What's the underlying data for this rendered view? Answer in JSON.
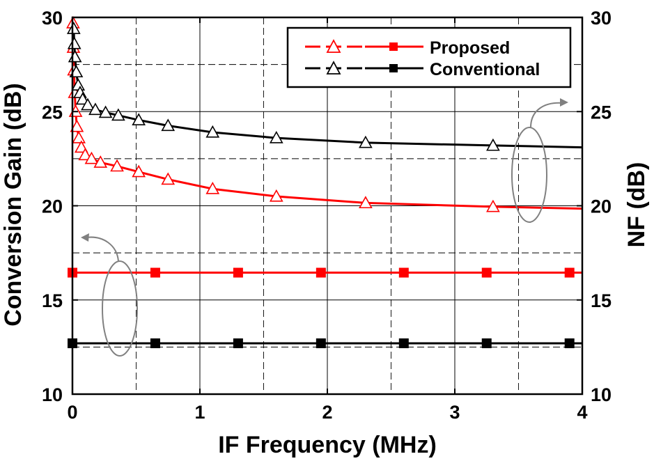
{
  "chart_data": {
    "type": "line",
    "xlabel": "IF Frequency (MHz)",
    "ylabel_left": "Conversion Gain (dB)",
    "ylabel_right": "NF (dB)",
    "xlim": [
      0,
      4
    ],
    "ylim_left": [
      10,
      30
    ],
    "ylim_right": [
      10,
      30
    ],
    "xticks": [
      "0",
      "1",
      "2",
      "3",
      "4"
    ],
    "yticks_left": [
      "10",
      "15",
      "20",
      "25",
      "30"
    ],
    "yticks_right": [
      "10",
      "15",
      "20",
      "25",
      "30"
    ],
    "grid": true,
    "legend": {
      "placement": "top-right",
      "entries": [
        "Proposed",
        "Conventional"
      ]
    },
    "colors": {
      "proposed": "#ff0000",
      "conventional": "#000000",
      "annotation": "#808080"
    },
    "series": [
      {
        "name": "Proposed",
        "kind": "conversion-gain",
        "axis": "left",
        "marker": "filled-square",
        "color": "#ff0000",
        "x": [
          0,
          0.65,
          1.3,
          1.95,
          2.6,
          3.25,
          3.9
        ],
        "y": [
          16.45,
          16.45,
          16.45,
          16.45,
          16.45,
          16.45,
          16.45
        ]
      },
      {
        "name": "Conventional",
        "kind": "conversion-gain",
        "axis": "left",
        "marker": "filled-square",
        "color": "#000000",
        "x": [
          0,
          0.65,
          1.3,
          1.95,
          2.6,
          3.25,
          3.9
        ],
        "y": [
          12.7,
          12.7,
          12.7,
          12.7,
          12.7,
          12.7,
          12.7
        ]
      },
      {
        "name": "Proposed",
        "kind": "nf",
        "axis": "right",
        "marker": "open-triangle",
        "color": "#ff0000",
        "x": [
          0.005,
          0.008,
          0.012,
          0.018,
          0.025,
          0.035,
          0.05,
          0.07,
          0.1,
          0.15,
          0.22,
          0.35,
          0.52,
          0.75,
          1.1,
          1.6,
          2.3,
          3.3,
          4.0
        ],
        "y": [
          29.7,
          28.4,
          27.2,
          26.0,
          25.0,
          24.2,
          23.6,
          23.1,
          22.7,
          22.5,
          22.3,
          22.1,
          21.8,
          21.4,
          20.9,
          20.5,
          20.15,
          19.95,
          19.85
        ]
      },
      {
        "name": "Conventional",
        "kind": "nf",
        "axis": "right",
        "marker": "open-triangle",
        "color": "#000000",
        "x": [
          0.01,
          0.015,
          0.02,
          0.03,
          0.045,
          0.06,
          0.08,
          0.12,
          0.18,
          0.26,
          0.36,
          0.52,
          0.75,
          1.1,
          1.6,
          2.3,
          3.3,
          4.0
        ],
        "y": [
          29.4,
          28.6,
          27.9,
          27.1,
          26.4,
          26.0,
          25.65,
          25.35,
          25.1,
          24.95,
          24.8,
          24.55,
          24.25,
          23.9,
          23.6,
          23.35,
          23.2,
          23.1
        ]
      }
    ]
  }
}
